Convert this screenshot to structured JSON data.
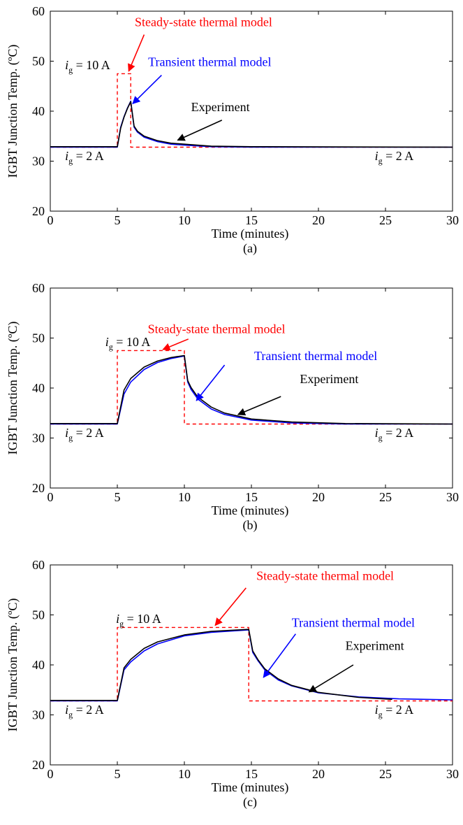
{
  "chart_data": [
    {
      "type": "line",
      "panel_label": "(a)",
      "xlabel": "Time (minutes)",
      "ylabel": "IGBT Junction Temp. (ºC)",
      "xlim": [
        0,
        30
      ],
      "ylim": [
        20,
        60
      ],
      "xticks": [
        0,
        5,
        10,
        15,
        20,
        25,
        30
      ],
      "yticks": [
        20,
        30,
        40,
        50,
        60
      ],
      "grid": false,
      "step_on": 5,
      "step_off": 6,
      "steady_state": {
        "low": 32.8,
        "high": 47.5
      },
      "transient": {
        "baseline": 32.8,
        "peak": 42.0,
        "tau_heat_min": 2.5,
        "tau_cool_min": 1.6
      },
      "series": [
        {
          "name": "Steady-state thermal model",
          "color": "#ff0000",
          "dash": true,
          "points": [
            [
              0,
              32.8
            ],
            [
              5,
              32.8
            ],
            [
              5,
              47.5
            ],
            [
              6,
              47.5
            ],
            [
              6,
              32.8
            ],
            [
              30,
              32.8
            ]
          ]
        },
        {
          "name": "Transient thermal model",
          "color": "#0000ff",
          "dash": false,
          "points": [
            [
              0,
              32.8
            ],
            [
              5,
              32.8
            ],
            [
              5.25,
              36.8
            ],
            [
              5.5,
              38.9
            ],
            [
              5.75,
              40.6
            ],
            [
              6,
              42.0
            ],
            [
              6.25,
              36.8
            ],
            [
              6.5,
              35.8
            ],
            [
              7,
              34.8
            ],
            [
              8,
              33.9
            ],
            [
              9,
              33.4
            ],
            [
              10,
              33.2
            ],
            [
              12,
              32.9
            ],
            [
              15,
              32.8
            ],
            [
              30,
              32.8
            ]
          ]
        },
        {
          "name": "Experiment",
          "color": "#000000",
          "dash": false,
          "points": [
            [
              0,
              32.9
            ],
            [
              5,
              32.9
            ],
            [
              5.25,
              36.6
            ],
            [
              5.5,
              38.8
            ],
            [
              5.75,
              40.5
            ],
            [
              6,
              41.9
            ],
            [
              6.25,
              37.0
            ],
            [
              6.5,
              36.0
            ],
            [
              7,
              35.0
            ],
            [
              8,
              34.1
            ],
            [
              9,
              33.6
            ],
            [
              10,
              33.4
            ],
            [
              12,
              33.0
            ],
            [
              15,
              32.9
            ],
            [
              30,
              32.8
            ]
          ]
        }
      ],
      "annotations": [
        {
          "text": "Steady-state thermal model",
          "color": "#ff0000",
          "x": 6.3,
          "y": 57.0,
          "anchor": "start",
          "arrow": [
            [
              7.0,
              55.3
            ],
            [
              5.85,
              48.0
            ]
          ]
        },
        {
          "text": "Transient thermal model",
          "color": "#0000ff",
          "x": 7.3,
          "y": 49.0,
          "anchor": "start",
          "arrow": [
            [
              8.3,
              47.2
            ],
            [
              6.15,
              41.5
            ]
          ]
        },
        {
          "text": "Experiment",
          "color": "#000000",
          "x": 10.5,
          "y": 40.0,
          "anchor": "start",
          "arrow": [
            [
              12.8,
              38.2
            ],
            [
              9.5,
              34.2
            ]
          ]
        }
      ],
      "current_labels": [
        {
          "value": "10 A",
          "x": 1.1,
          "y": 48.4
        },
        {
          "value": "2 A",
          "x": 1.1,
          "y": 30.2
        },
        {
          "value": "2 A",
          "x": 24.2,
          "y": 30.2
        }
      ]
    },
    {
      "type": "line",
      "panel_label": "(b)",
      "xlabel": "Time (minutes)",
      "ylabel": "IGBT Junction Temp. (ºC)",
      "xlim": [
        0,
        30
      ],
      "ylim": [
        20,
        60
      ],
      "xticks": [
        0,
        5,
        10,
        15,
        20,
        25,
        30
      ],
      "yticks": [
        20,
        30,
        40,
        50,
        60
      ],
      "grid": false,
      "step_on": 5,
      "step_off": 10,
      "steady_state": {
        "low": 32.8,
        "high": 47.5
      },
      "transient": {
        "baseline": 32.8,
        "peak": 46.4,
        "tau_heat_min": 1.6,
        "tau_cool_min": 1.8
      },
      "series": [
        {
          "name": "Steady-state thermal model",
          "color": "#ff0000",
          "dash": true,
          "points": [
            [
              0,
              32.8
            ],
            [
              5,
              32.8
            ],
            [
              5,
              47.5
            ],
            [
              10,
              47.5
            ],
            [
              10,
              32.8
            ],
            [
              30,
              32.8
            ]
          ]
        },
        {
          "name": "Transient thermal model",
          "color": "#0000ff",
          "dash": false,
          "points": [
            [
              0,
              32.8
            ],
            [
              5,
              32.8
            ],
            [
              5.5,
              38.8
            ],
            [
              6,
              41.2
            ],
            [
              7,
              43.7
            ],
            [
              8,
              45.1
            ],
            [
              9,
              45.9
            ],
            [
              10,
              46.4
            ],
            [
              10.25,
              41.2
            ],
            [
              10.5,
              39.7
            ],
            [
              11,
              37.8
            ],
            [
              12,
              35.8
            ],
            [
              13,
              34.7
            ],
            [
              15,
              33.6
            ],
            [
              18,
              33.0
            ],
            [
              22,
              32.8
            ],
            [
              30,
              32.8
            ]
          ]
        },
        {
          "name": "Experiment",
          "color": "#000000",
          "dash": false,
          "points": [
            [
              0,
              32.9
            ],
            [
              5,
              32.9
            ],
            [
              5.5,
              39.6
            ],
            [
              6,
              41.9
            ],
            [
              7,
              44.2
            ],
            [
              8,
              45.4
            ],
            [
              9,
              46.1
            ],
            [
              10,
              46.5
            ],
            [
              10.25,
              41.5
            ],
            [
              10.5,
              40.1
            ],
            [
              11,
              38.2
            ],
            [
              12,
              36.2
            ],
            [
              13,
              35.0
            ],
            [
              15,
              33.8
            ],
            [
              18,
              33.2
            ],
            [
              22,
              32.9
            ],
            [
              30,
              32.8
            ]
          ]
        }
      ],
      "annotations": [
        {
          "text": "Steady-state thermal model",
          "color": "#ff0000",
          "x": 12.4,
          "y": 51.0,
          "anchor": "middle",
          "arrow": [
            [
              10.3,
              49.8
            ],
            [
              8.4,
              47.7
            ]
          ]
        },
        {
          "text": "Transient thermal model",
          "color": "#0000ff",
          "x": 19.8,
          "y": 45.6,
          "anchor": "middle",
          "arrow": [
            [
              13.0,
              44.6
            ],
            [
              10.9,
              37.5
            ]
          ]
        },
        {
          "text": "Experiment",
          "color": "#000000",
          "x": 20.8,
          "y": 41.0,
          "anchor": "middle",
          "arrow": [
            [
              17.2,
              38.3
            ],
            [
              14.0,
              34.7
            ]
          ]
        }
      ],
      "current_labels": [
        {
          "value": "10 A",
          "x": 4.1,
          "y": 48.4
        },
        {
          "value": "2 A",
          "x": 1.1,
          "y": 30.2
        },
        {
          "value": "2 A",
          "x": 24.2,
          "y": 30.2
        }
      ]
    },
    {
      "type": "line",
      "panel_label": "(c)",
      "xlabel": "Time (minutes)",
      "ylabel": "IGBT Junction Temp. (ºC)",
      "xlim": [
        0,
        30
      ],
      "ylim": [
        20,
        60
      ],
      "xticks": [
        0,
        5,
        10,
        15,
        20,
        25,
        30
      ],
      "yticks": [
        20,
        30,
        40,
        50,
        60
      ],
      "grid": false,
      "step_on": 5,
      "step_off": 14.8,
      "steady_state": {
        "low": 32.8,
        "high": 47.5
      },
      "transient": {
        "baseline": 32.8,
        "peak": 47.0,
        "tau_heat_min": 2.2,
        "tau_cool_min": 2.5
      },
      "series": [
        {
          "name": "Steady-state thermal model",
          "color": "#ff0000",
          "dash": true,
          "points": [
            [
              0,
              32.8
            ],
            [
              5,
              32.8
            ],
            [
              5,
              47.5
            ],
            [
              14.8,
              47.5
            ],
            [
              14.8,
              32.8
            ],
            [
              30,
              32.8
            ]
          ]
        },
        {
          "name": "Transient thermal model",
          "color": "#0000ff",
          "dash": false,
          "points": [
            [
              0,
              32.8
            ],
            [
              5,
              32.8
            ],
            [
              5.5,
              39.0
            ],
            [
              6,
              40.6
            ],
            [
              7,
              42.8
            ],
            [
              8,
              44.2
            ],
            [
              10,
              45.8
            ],
            [
              12,
              46.5
            ],
            [
              14.8,
              47.0
            ],
            [
              15.1,
              42.5
            ],
            [
              15.5,
              40.8
            ],
            [
              16,
              39.0
            ],
            [
              17,
              37.0
            ],
            [
              18,
              35.8
            ],
            [
              20,
              34.4
            ],
            [
              23,
              33.6
            ],
            [
              26,
              33.2
            ],
            [
              30,
              33.0
            ]
          ]
        },
        {
          "name": "Experiment",
          "color": "#000000",
          "dash": false,
          "points": [
            [
              0,
              32.9
            ],
            [
              5,
              32.9
            ],
            [
              5.5,
              39.4
            ],
            [
              6,
              41.1
            ],
            [
              7,
              43.3
            ],
            [
              8,
              44.6
            ],
            [
              10,
              46.0
            ],
            [
              12,
              46.7
            ],
            [
              14.8,
              47.1
            ],
            [
              15.1,
              42.8
            ],
            [
              15.5,
              41.0
            ],
            [
              16,
              39.2
            ],
            [
              17,
              37.2
            ],
            [
              18,
              35.9
            ],
            [
              20,
              34.5
            ],
            [
              23,
              33.5
            ],
            [
              25.5,
              33.1
            ]
          ]
        }
      ],
      "annotations": [
        {
          "text": "Steady-state thermal model",
          "color": "#ff0000",
          "x": 20.5,
          "y": 57.0,
          "anchor": "middle",
          "arrow": [
            [
              14.6,
              55.4
            ],
            [
              12.3,
              47.9
            ]
          ]
        },
        {
          "text": "Transient thermal model",
          "color": "#0000ff",
          "x": 22.6,
          "y": 47.6,
          "anchor": "middle",
          "arrow": [
            [
              18.3,
              46.2
            ],
            [
              15.9,
              37.5
            ]
          ]
        },
        {
          "text": "Experiment",
          "color": "#000000",
          "x": 24.2,
          "y": 43.0,
          "anchor": "middle",
          "arrow": [
            [
              22.6,
              40.0
            ],
            [
              19.3,
              34.6
            ]
          ]
        }
      ],
      "current_labels": [
        {
          "value": "10 A",
          "x": 4.9,
          "y": 48.4
        },
        {
          "value": "2 A",
          "x": 1.1,
          "y": 30.2
        },
        {
          "value": "2 A",
          "x": 24.2,
          "y": 30.2
        }
      ]
    }
  ]
}
